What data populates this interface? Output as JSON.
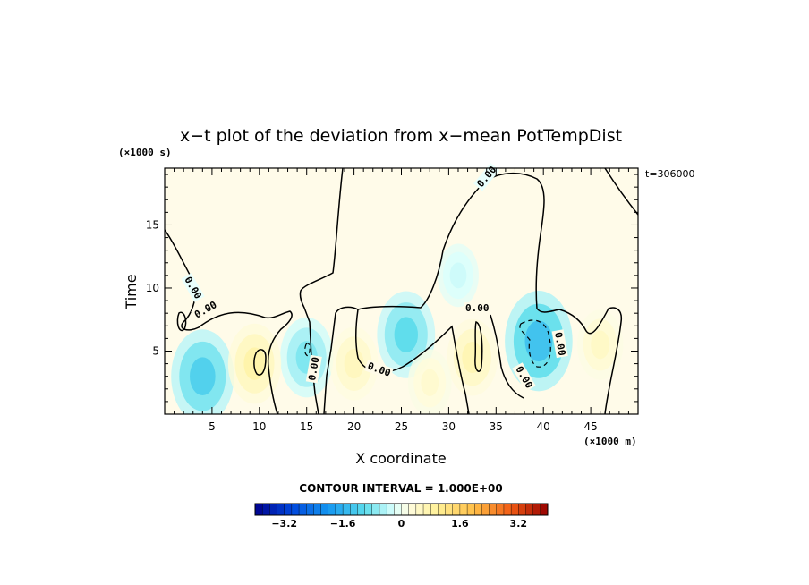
{
  "chart_data": {
    "type": "heatmap",
    "title": "x−t plot of the deviation from x−mean PotTempDist",
    "xlabel": "X coordinate",
    "ylabel": "Time",
    "x_unit_label": "(×1000 m)",
    "y_unit_label": "(×1000 s)",
    "time_label": "t=306000",
    "contour_interval_label": "CONTOUR INTERVAL = 1.000E+00",
    "xlim": [
      0,
      50
    ],
    "ylim": [
      0,
      19.5
    ],
    "x_ticks": [
      5,
      10,
      15,
      20,
      25,
      30,
      35,
      40,
      45
    ],
    "y_ticks": [
      5,
      10,
      15
    ],
    "contour_labels": [
      "0.00",
      "0.00",
      "0.00",
      "0.00",
      "0.00",
      "0.00",
      "0.00",
      "0.00",
      "0.00"
    ],
    "colorbar": {
      "range": [
        -4,
        4
      ],
      "step": 0.2,
      "tick_values": [
        -3.2,
        -1.6,
        0,
        1.6,
        3.2
      ],
      "tick_labels": [
        "−3.2",
        "−1.6",
        "0",
        "1.6",
        "3.2"
      ]
    },
    "anomalies": [
      {
        "x": 4.0,
        "t": 3.0,
        "value": -1.2
      },
      {
        "x": 15.0,
        "t": 4.5,
        "value": -0.8
      },
      {
        "x": 25.5,
        "t": 6.3,
        "value": -1.0
      },
      {
        "x": 31.0,
        "t": 11.0,
        "value": -0.3
      },
      {
        "x": 39.5,
        "t": 5.8,
        "value": -1.4
      },
      {
        "x": 9.5,
        "t": 4.0,
        "value": 0.8
      },
      {
        "x": 20.0,
        "t": 4.0,
        "value": 0.6
      },
      {
        "x": 32.5,
        "t": 4.5,
        "value": 0.7
      },
      {
        "x": 46.0,
        "t": 5.5,
        "value": 0.5
      },
      {
        "x": 28.0,
        "t": 2.5,
        "value": 0.4
      }
    ]
  }
}
